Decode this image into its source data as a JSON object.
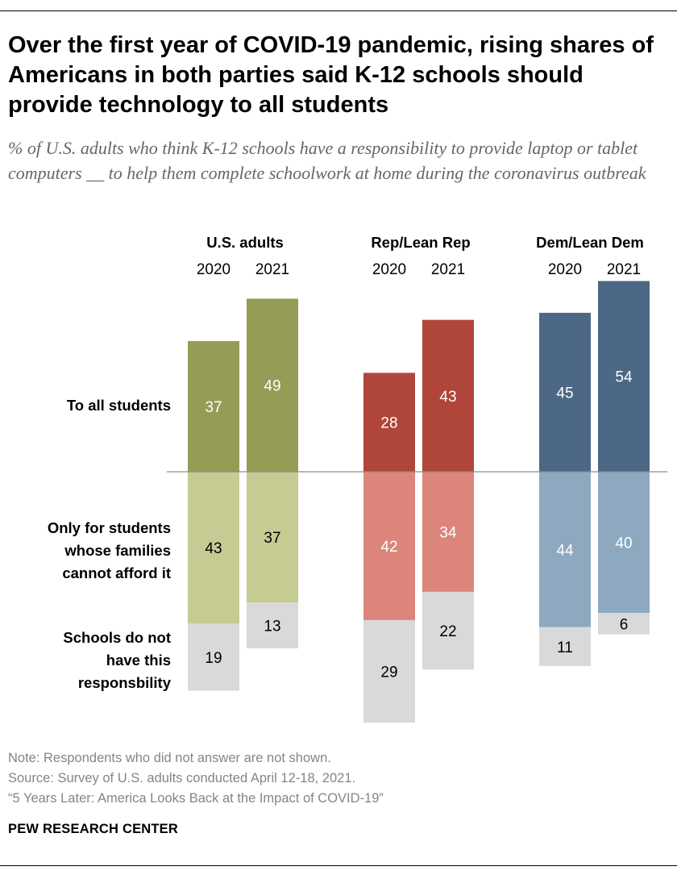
{
  "title": "Over the first year of COVID-19 pandemic, rising shares of Americans in both parties said K-12 schools should provide technology to all students",
  "subtitle": "% of U.S. adults who think K-12 schools have a responsibility to provide laptop or tablet computers __ to help them complete schoolwork at home during the coronavirus outbreak",
  "notes": {
    "note": "Note: Respondents who did not answer are not shown.",
    "source": "Source: Survey of U.S. adults conducted April 12-18, 2021.",
    "report": "“5 Years Later: America Looks Back at the Impact of COVID-19”"
  },
  "brand": "PEW RESEARCH CENTER",
  "chart_data": {
    "type": "bar",
    "stacking": "diverging",
    "groups": [
      "U.S. adults",
      "Rep/Lean Rep",
      "Dem/Lean Dem"
    ],
    "years": [
      "2020",
      "2021"
    ],
    "series": [
      {
        "name": "To all students",
        "position": "above-baseline",
        "colors": [
          "#959c55",
          "#b0463a",
          "#4c6884"
        ],
        "values": [
          [
            37,
            49
          ],
          [
            28,
            43
          ],
          [
            45,
            54
          ]
        ]
      },
      {
        "name": "Only for students whose families cannot afford it",
        "position": "below-baseline",
        "colors": [
          "#c5cb93",
          "#dc857a",
          "#8da8bf"
        ],
        "values": [
          [
            43,
            37
          ],
          [
            42,
            34
          ],
          [
            44,
            40
          ]
        ]
      },
      {
        "name": "Schools do not have this responsbility",
        "position": "below-stacked",
        "colors": [
          "#d9d9d9",
          "#d9d9d9",
          "#d9d9d9"
        ],
        "values": [
          [
            19,
            13
          ],
          [
            29,
            22
          ],
          [
            11,
            6
          ]
        ]
      }
    ],
    "row_labels": [
      [
        "To all students"
      ],
      [
        "Only for students",
        "whose families",
        "cannot afford it"
      ],
      [
        "Schools do not",
        "have this",
        "responsbility"
      ]
    ],
    "legend": "left row labels"
  }
}
